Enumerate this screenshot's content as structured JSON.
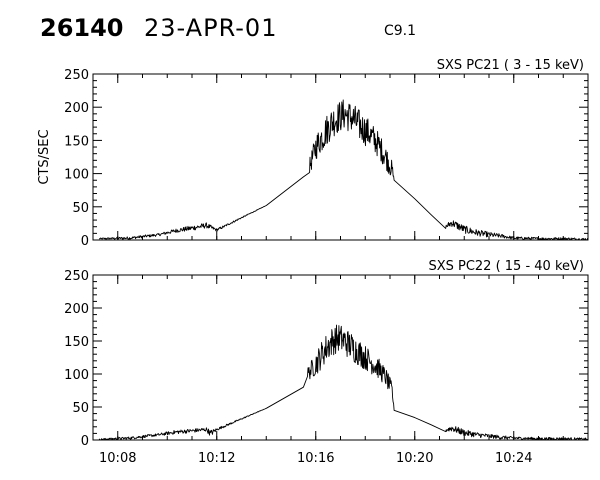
{
  "header": {
    "event_id": "26140",
    "date": "23-APR-01",
    "flare_class": "C9.1"
  },
  "chart_data": [
    {
      "type": "line",
      "title": "SXS PC21  (  3 - 15 keV)",
      "ylabel": "CTS/SEC",
      "ylim": [
        0,
        250
      ],
      "yticks": [
        0,
        50,
        100,
        150,
        200,
        250
      ],
      "xlim": [
        "10:07",
        "10:27"
      ],
      "xticks": [
        "10:08",
        "10:12",
        "10:16",
        "10:20",
        "10:24"
      ],
      "x_tick_labels_shown": false,
      "grid": false,
      "series": [
        {
          "x": [
            "10:07:15",
            "10:08:30",
            "10:09:40",
            "10:10:20",
            "10:11:00",
            "10:11:35",
            "10:12:00",
            "10:14:00",
            "10:15:30",
            "10:15:45",
            "10:16:00",
            "10:16:20",
            "10:16:40",
            "10:16:55",
            "10:17:10",
            "10:17:30",
            "10:17:50",
            "10:18:10",
            "10:18:30",
            "10:18:50",
            "10:19:05",
            "10:19:10",
            "10:20:00",
            "10:20:40",
            "10:21:15",
            "10:21:30",
            "10:22:00",
            "10:22:30",
            "10:23:00",
            "10:23:30",
            "10:24:00",
            "10:25:00",
            "10:26:00",
            "10:27:00"
          ],
          "values": [
            2,
            3,
            8,
            14,
            18,
            22,
            15,
            52,
            95,
            110,
            140,
            160,
            178,
            185,
            190,
            183,
            170,
            160,
            145,
            125,
            105,
            90,
            62,
            38,
            20,
            26,
            16,
            11,
            8,
            6,
            3,
            2,
            2,
            1
          ],
          "noise": [
            1,
            2,
            2,
            3,
            4,
            4,
            2,
            0,
            0,
            12,
            20,
            24,
            24,
            24,
            24,
            24,
            24,
            22,
            20,
            18,
            14,
            0,
            0,
            0,
            3,
            6,
            6,
            5,
            4,
            3,
            2,
            2,
            2,
            2
          ]
        }
      ]
    },
    {
      "type": "line",
      "title": "SXS PC22  ( 15 - 40 keV)",
      "ylabel": "",
      "ylim": [
        0,
        250
      ],
      "yticks": [
        0,
        50,
        100,
        150,
        200,
        250
      ],
      "xlim": [
        "10:07",
        "10:27"
      ],
      "xticks": [
        "10:08",
        "10:12",
        "10:16",
        "10:20",
        "10:24"
      ],
      "x_tick_labels_shown": true,
      "grid": false,
      "series": [
        {
          "x": [
            "10:07:15",
            "10:08:30",
            "10:09:40",
            "10:10:20",
            "10:11:00",
            "10:11:35",
            "10:11:45",
            "10:12:00",
            "10:14:00",
            "10:15:30",
            "10:15:40",
            "10:16:00",
            "10:16:20",
            "10:16:40",
            "10:16:55",
            "10:17:10",
            "10:17:30",
            "10:17:50",
            "10:18:10",
            "10:18:30",
            "10:18:50",
            "10:19:05",
            "10:19:10",
            "10:20:00",
            "10:20:40",
            "10:21:15",
            "10:21:30",
            "10:22:00",
            "10:22:30",
            "10:23:00",
            "10:23:30",
            "10:24:00",
            "10:25:00",
            "10:26:00",
            "10:27:00"
          ],
          "values": [
            1,
            3,
            8,
            12,
            14,
            16,
            10,
            16,
            48,
            80,
            100,
            115,
            135,
            150,
            155,
            150,
            140,
            130,
            120,
            110,
            95,
            75,
            45,
            34,
            23,
            15,
            18,
            11,
            8,
            6,
            4,
            3,
            2,
            2,
            1
          ],
          "noise": [
            1,
            2,
            2,
            3,
            3,
            3,
            5,
            2,
            0,
            0,
            10,
            18,
            22,
            22,
            22,
            22,
            22,
            20,
            18,
            16,
            14,
            12,
            0,
            0,
            0,
            3,
            5,
            5,
            4,
            3,
            3,
            2,
            2,
            2,
            2
          ]
        }
      ]
    }
  ]
}
